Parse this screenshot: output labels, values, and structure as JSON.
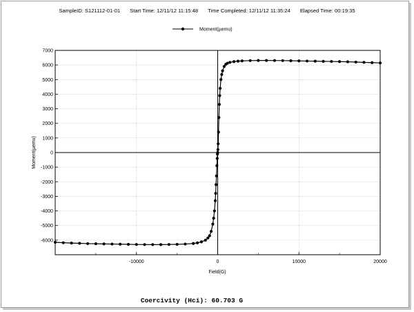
{
  "header": {
    "sample_id": "SampleID:  S121112-01-01",
    "start_time": "Start Time:  12/11/12 11:15:48",
    "time_completed": "Time Completed:  12/11/12 11:35:24",
    "elapsed_time": "Elapsed Time:  00:19:35"
  },
  "footer": {
    "coercivity": "Coercivity (Hci): 60.703 G"
  },
  "chart_data": {
    "type": "scatter",
    "title": "",
    "xlabel": "Field(G)",
    "ylabel": "Moment(µemu)",
    "xlim": [
      -20000,
      20000
    ],
    "ylim": [
      -7000,
      7000
    ],
    "x_ticks": [
      -10000,
      0,
      10000,
      20000
    ],
    "y_ticks": [
      7000,
      6000,
      5000,
      4000,
      3000,
      2000,
      1000,
      0,
      -1000,
      -2000,
      -3000,
      -4000,
      -5000,
      -6000
    ],
    "grid": true,
    "legend_position": "top-center",
    "series": [
      {
        "name": "Moment(µemu)",
        "color": "#000000",
        "marker": "circle",
        "x": [
          -20000,
          -19000,
          -18000,
          -17000,
          -16000,
          -15000,
          -14000,
          -13000,
          -12000,
          -11000,
          -10000,
          -9000,
          -8000,
          -7000,
          -6000,
          -5000,
          -4000,
          -3000,
          -2500,
          -2000,
          -1500,
          -1200,
          -1000,
          -800,
          -600,
          -500,
          -400,
          -300,
          -250,
          -200,
          -150,
          -100,
          -60,
          -30,
          0,
          30,
          60,
          100,
          150,
          200,
          250,
          300,
          400,
          500,
          600,
          800,
          1000,
          1200,
          1500,
          2000,
          2500,
          3000,
          4000,
          5000,
          6000,
          7000,
          8000,
          9000,
          10000,
          11000,
          12000,
          13000,
          14000,
          15000,
          16000,
          17000,
          18000,
          19000,
          20000
        ],
        "y": [
          -6150,
          -6180,
          -6200,
          -6220,
          -6240,
          -6250,
          -6260,
          -6270,
          -6280,
          -6290,
          -6300,
          -6305,
          -6310,
          -6310,
          -6300,
          -6290,
          -6270,
          -6230,
          -6190,
          -6120,
          -6000,
          -5850,
          -5700,
          -5400,
          -4900,
          -4500,
          -4000,
          -3300,
          -2800,
          -2200,
          -1600,
          -900,
          -400,
          -100,
          0,
          200,
          600,
          1400,
          2400,
          3300,
          3900,
          4400,
          5000,
          5350,
          5600,
          5900,
          6050,
          6120,
          6180,
          6230,
          6260,
          6280,
          6300,
          6310,
          6310,
          6305,
          6300,
          6290,
          6280,
          6270,
          6260,
          6250,
          6240,
          6230,
          6220,
          6200,
          6180,
          6160,
          6140
        ]
      }
    ]
  }
}
